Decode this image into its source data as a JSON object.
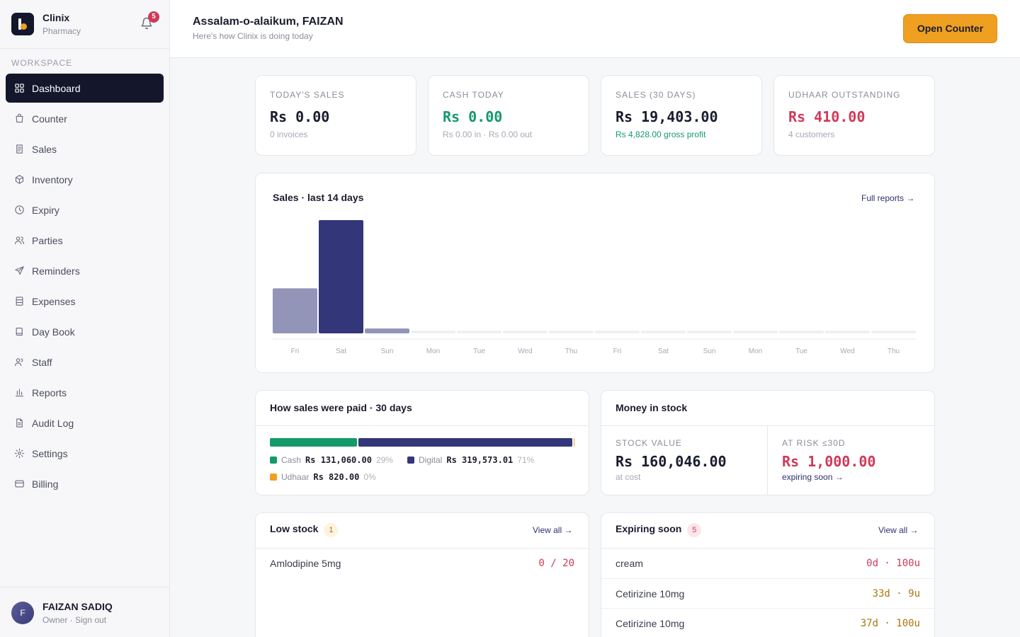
{
  "brand": {
    "name": "Clinix",
    "subtitle": "Pharmacy",
    "notifications": "5"
  },
  "sidebar": {
    "section_label": "WORKSPACE",
    "items": [
      {
        "label": "Dashboard",
        "icon": "grid-icon",
        "active": true
      },
      {
        "label": "Counter",
        "icon": "bag-icon"
      },
      {
        "label": "Sales",
        "icon": "receipt-icon"
      },
      {
        "label": "Inventory",
        "icon": "box-icon"
      },
      {
        "label": "Expiry",
        "icon": "clock-icon"
      },
      {
        "label": "Parties",
        "icon": "users-icon"
      },
      {
        "label": "Reminders",
        "icon": "send-icon"
      },
      {
        "label": "Expenses",
        "icon": "wallet-icon"
      },
      {
        "label": "Day Book",
        "icon": "book-icon"
      },
      {
        "label": "Staff",
        "icon": "staff-icon"
      },
      {
        "label": "Reports",
        "icon": "bar-chart-icon"
      },
      {
        "label": "Audit Log",
        "icon": "document-icon"
      },
      {
        "label": "Settings",
        "icon": "gear-icon"
      },
      {
        "label": "Billing",
        "icon": "card-icon"
      }
    ]
  },
  "user": {
    "initial": "F",
    "name": "FAIZAN SADIQ",
    "role": "Owner · Sign out"
  },
  "header": {
    "greeting": "Assalam-o-alaikum, FAIZAN",
    "subtitle": "Here's how Clinix is doing today",
    "open_counter": "Open Counter"
  },
  "stats": [
    {
      "label": "TODAY'S SALES",
      "value": "Rs 0.00",
      "sub": "0 invoices",
      "color": "#1a1c2e",
      "sub_color": "#a7a9b4"
    },
    {
      "label": "CASH TODAY",
      "value": "Rs 0.00",
      "sub": "Rs 0.00 in · Rs 0.00 out",
      "color": "#149a6a",
      "sub_color": "#a7a9b4"
    },
    {
      "label": "SALES (30 DAYS)",
      "value": "Rs 19,403.00",
      "sub": "Rs 4,828.00 gross profit",
      "color": "#1a1c2e",
      "sub_color": "#149a6a"
    },
    {
      "label": "UDHAAR OUTSTANDING",
      "value": "Rs 410.00",
      "sub": "4 customers",
      "color": "#cf3a5a",
      "sub_color": "#a7a9b4"
    }
  ],
  "sales_chart": {
    "title": "Sales · last 14 days",
    "link": "Full reports →"
  },
  "chart_data": {
    "type": "bar",
    "title": "Sales · last 14 days",
    "categories": [
      "Fri",
      "Sat",
      "Sun",
      "Mon",
      "Tue",
      "Wed",
      "Thu",
      "Fri",
      "Sat",
      "Sun",
      "Mon",
      "Tue",
      "Wed",
      "Thu"
    ],
    "values": [
      4060,
      10210,
      440,
      0,
      0,
      0,
      0,
      0,
      0,
      0,
      0,
      0,
      0,
      0
    ],
    "ylim": [
      0,
      10210
    ],
    "highlight_index": 1,
    "colors": {
      "bar": "#9294b8",
      "highlight": "#34367a",
      "empty": "#eff0f3"
    }
  },
  "payments": {
    "title": "How sales were paid · 30 days",
    "items": [
      {
        "name": "Cash",
        "amount": "Rs 131,060.00",
        "pct": "29%",
        "share": 29,
        "color": "#149a6a"
      },
      {
        "name": "Digital",
        "amount": "Rs 319,573.01",
        "pct": "71%",
        "share": 71,
        "color": "#34367a"
      },
      {
        "name": "Udhaar",
        "amount": "Rs 820.00",
        "pct": "0%",
        "share": 0.2,
        "color": "#f0a020"
      }
    ]
  },
  "stock": {
    "title": "Money in stock",
    "value_label": "STOCK VALUE",
    "value": "Rs 160,046.00",
    "value_sub": "at cost",
    "risk_label": "AT RISK ≤30D",
    "risk_value": "Rs 1,000.00",
    "risk_link": "expiring soon →"
  },
  "low_stock": {
    "title": "Low stock",
    "count": "1",
    "link": "View all →",
    "rows": [
      {
        "name": "Amlodipine 5mg",
        "value": "0 / 20",
        "color": "#cf3a5a"
      }
    ]
  },
  "expiring": {
    "title": "Expiring soon",
    "count": "5",
    "link": "View all →",
    "rows": [
      {
        "name": "cream",
        "value": "0d · 100u",
        "color": "#cf3a5a"
      },
      {
        "name": "Cetirizine 10mg",
        "value": "33d · 9u",
        "color": "#a8780e"
      },
      {
        "name": "Cetirizine 10mg",
        "value": "37d · 100u",
        "color": "#a8780e"
      }
    ]
  }
}
